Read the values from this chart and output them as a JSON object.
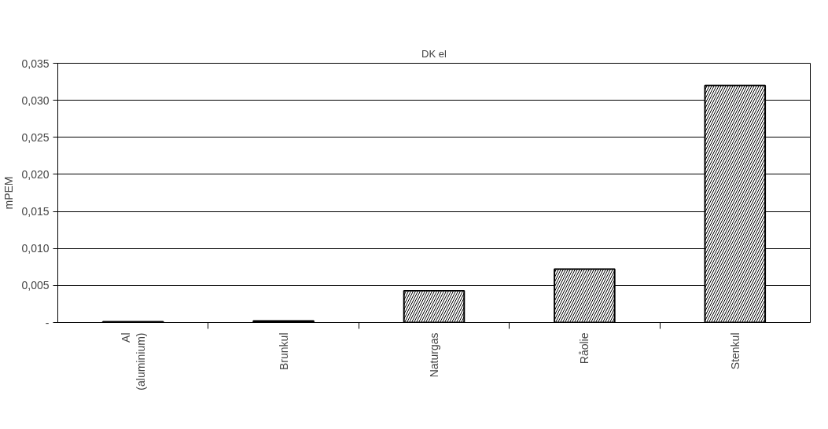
{
  "chart_data": {
    "type": "bar",
    "title": "DK el",
    "ylabel": "mPEM",
    "categories": [
      "Al\n(aluminium)",
      "Brunkul",
      "Naturgas",
      "Råolie",
      "Stenkul"
    ],
    "values": [
      0.0001,
      0.0002,
      0.0043,
      0.0072,
      0.032
    ],
    "color": "#000000",
    "ylim": [
      0,
      0.035
    ],
    "yticks": [
      {
        "value": 0,
        "label": "-"
      },
      {
        "value": 0.005,
        "label": "0,005"
      },
      {
        "value": 0.01,
        "label": "0,010"
      },
      {
        "value": 0.015,
        "label": "0,015"
      },
      {
        "value": 0.02,
        "label": "0,020"
      },
      {
        "value": 0.025,
        "label": "0,025"
      },
      {
        "value": 0.03,
        "label": "0,030"
      },
      {
        "value": 0.035,
        "label": "0,035"
      }
    ],
    "grid": "y"
  }
}
